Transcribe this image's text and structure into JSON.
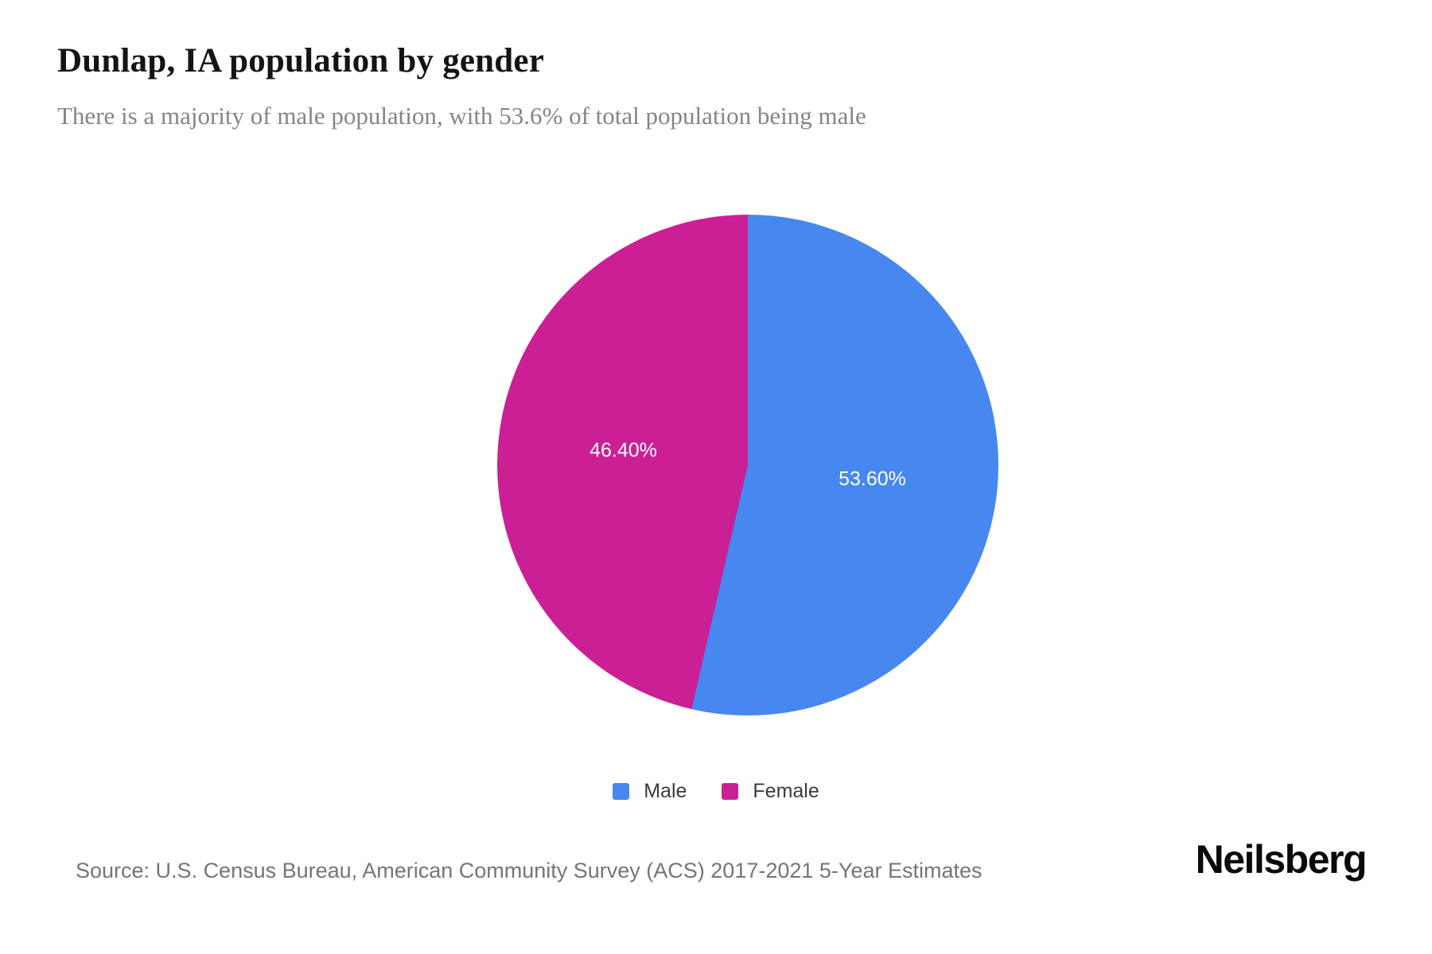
{
  "header": {
    "title": "Dunlap, IA population by gender",
    "subtitle": "There is a majority of male population, with 53.6% of total population being male"
  },
  "chart_data": {
    "type": "pie",
    "title": "Dunlap, IA population by gender",
    "unit": "percent of total population",
    "start_angle_deg": 0,
    "direction": "clockwise",
    "legend_position": "bottom",
    "slice_label_color": "#ffffff",
    "slices": [
      {
        "label": "Male",
        "value": 53.6,
        "display": "53.60%",
        "color": "#4687F0"
      },
      {
        "label": "Female",
        "value": 46.4,
        "display": "46.40%",
        "color": "#CB2095"
      }
    ]
  },
  "footer": {
    "source": "Source: U.S. Census Bureau, American Community Survey (ACS) 2017-2021 5-Year Estimates",
    "brand": "Neilsberg"
  },
  "colors": {
    "male": "#4687F0",
    "female": "#CB2095",
    "title_text": "#141414",
    "subtitle_text": "#858585",
    "source_text": "#757575"
  }
}
